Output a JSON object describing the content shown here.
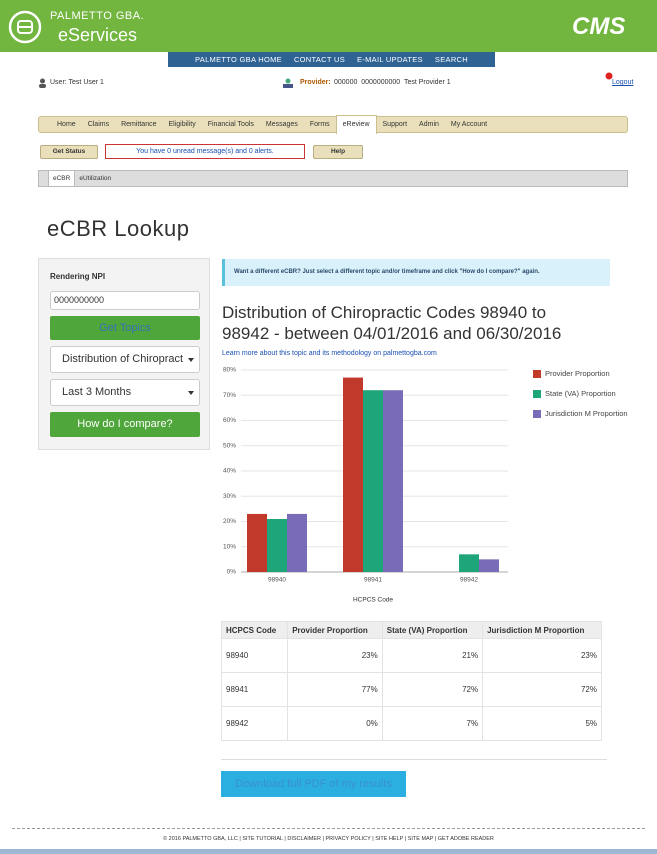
{
  "header": {
    "brand": "PALMETTO GBA.",
    "product": "eServices",
    "logo": "CMS"
  },
  "topnav": [
    "PALMETTO GBA HOME",
    "CONTACT US",
    "E-MAIL UPDATES",
    "SEARCH"
  ],
  "userbar": {
    "user": "User: Test User 1",
    "provider_label": "Provider:",
    "provider_value": "000000  0000000000  Test Provider 1",
    "logout": "Logout"
  },
  "menu": [
    "Home",
    "Claims",
    "Remittance",
    "Eligibility",
    "Financial Tools",
    "Messages",
    "Forms",
    "eReview",
    "Support",
    "Admin",
    "My Account"
  ],
  "status": {
    "button": "Get Status",
    "message": "You have 0 unread message(s) and 0 alerts.",
    "help": "Help"
  },
  "tabs": [
    "eCBR",
    "eUtilization"
  ],
  "page_title": "eCBR Lookup",
  "form": {
    "label": "Rendering NPI",
    "npi": "0000000000",
    "get_topics": "Get Topics",
    "topic": "Distribution of Chiropract",
    "timeframe": "Last 3 Months",
    "compare": "How do I compare?"
  },
  "notice": "Want a different eCBR? Just select a different topic and/or timeframe and click \"How do I compare?\" again.",
  "chart_data": {
    "type": "bar",
    "title": "Distribution of Chiropractic Codes 98940 to 98942 - between 04/01/2016 and 06/30/2016",
    "subtitle": "Learn more about this topic and its methodology on palmettogba.com",
    "x_label": "HCPCS Code",
    "categories": [
      "98940",
      "98941",
      "98942"
    ],
    "series": [
      {
        "name": "Provider Proportion",
        "color": "#c0392b",
        "values": [
          23,
          77,
          0
        ]
      },
      {
        "name": "State (VA) Proportion",
        "color": "#1ea57a",
        "values": [
          21,
          72,
          7
        ]
      },
      {
        "name": "Jurisdiction M Proportion",
        "color": "#7a6bb8",
        "values": [
          23,
          72,
          5
        ]
      }
    ],
    "ylim": [
      0,
      80
    ],
    "yticks": [
      {
        "value": 0,
        "label": "0%"
      },
      {
        "value": 10,
        "label": "10%"
      },
      {
        "value": 20,
        "label": "20%"
      },
      {
        "value": 30,
        "label": "30%"
      },
      {
        "value": 40,
        "label": "40%"
      },
      {
        "value": 50,
        "label": "50%"
      },
      {
        "value": 60,
        "label": "60%"
      },
      {
        "value": 70,
        "label": "70%"
      },
      {
        "value": 80,
        "label": "80%"
      }
    ],
    "grid": true,
    "legend": "right"
  },
  "table": {
    "headers": [
      "HCPCS Code",
      "Provider Proportion",
      "State (VA) Proportion",
      "Jurisdiction M Proportion"
    ],
    "rows": [
      [
        "98940",
        "23%",
        "21%",
        "23%"
      ],
      [
        "98941",
        "77%",
        "72%",
        "72%"
      ],
      [
        "98942",
        "0%",
        "7%",
        "5%"
      ]
    ]
  },
  "download": "Download full PDF of my results",
  "footer": "© 2016 PALMETTO GBA, LLC | SITE TUTORIAL | DISCLAIMER | PRIVACY POLICY | SITE HELP | SITE MAP | GET ADOBE READER"
}
